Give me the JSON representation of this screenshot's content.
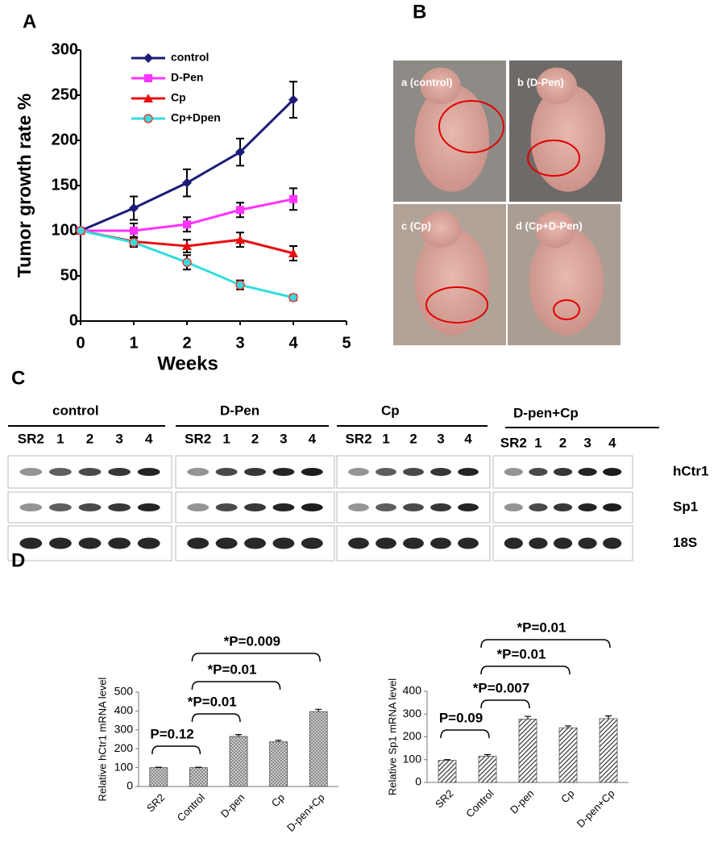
{
  "panel_labels": [
    "A",
    "B",
    "C",
    "D"
  ],
  "chart_data": [
    {
      "type": "line",
      "ylabel": "Tumor growth rate %",
      "xlabel": "Weeks",
      "x": [
        0,
        1,
        2,
        3,
        4
      ],
      "xlim": [
        0,
        5
      ],
      "xticks": [
        0,
        1,
        2,
        3,
        4,
        5
      ],
      "ylim": [
        0,
        300
      ],
      "yticks": [
        0,
        50,
        100,
        150,
        200,
        250,
        300
      ],
      "series": [
        {
          "name": "control",
          "color": "#1c1c78",
          "marker": "diamond",
          "values": [
            100,
            125,
            153,
            187,
            245
          ],
          "errors": [
            null,
            13,
            15,
            15,
            20
          ]
        },
        {
          "name": "D-Pen",
          "color": "#ff33ff",
          "marker": "square",
          "values": [
            100,
            100,
            107,
            123,
            135
          ],
          "errors": [
            null,
            8,
            8,
            8,
            12
          ]
        },
        {
          "name": "Cp",
          "color": "#e81010",
          "marker": "triangle",
          "values": [
            100,
            88,
            83,
            90,
            75
          ],
          "errors": [
            null,
            5,
            7,
            8,
            8
          ]
        },
        {
          "name": "Cp+Dpen",
          "color": "#33dddd",
          "marker": "circle",
          "values": [
            100,
            87,
            65,
            40,
            26
          ],
          "errors": [
            null,
            5,
            8,
            5,
            3
          ]
        }
      ]
    },
    {
      "type": "bar",
      "ylabel": "Relative hCtr1 mRNA level",
      "categories": [
        "SR2",
        "Control",
        "D-pen",
        "Cp",
        "D-pen+Cp"
      ],
      "values": [
        100,
        100,
        265,
        237,
        397
      ],
      "errors": [
        2,
        2,
        10,
        8,
        12
      ],
      "ylim": [
        0,
        500
      ],
      "yticks": [
        0,
        100,
        200,
        300,
        400,
        500
      ],
      "pattern": "dots",
      "annotations": [
        "P=0.12",
        "*P=0.01",
        "*P=0.01",
        "*P=0.009"
      ]
    },
    {
      "type": "bar",
      "ylabel": "Relative Sp1 mRNA level",
      "categories": [
        "SR2",
        "Control",
        "D-pen",
        "Cp",
        "D-pen+Cp"
      ],
      "values": [
        97,
        115,
        278,
        240,
        280
      ],
      "errors": [
        3,
        7,
        12,
        8,
        12
      ],
      "ylim": [
        0,
        400
      ],
      "yticks": [
        0,
        100,
        200,
        300,
        400
      ],
      "pattern": "hatch",
      "annotations": [
        "P=0.09",
        "*P=0.007",
        "*P=0.01",
        "*P=0.01"
      ]
    }
  ],
  "photos": [
    "a  (control)",
    "b  (D-Pen)",
    "c  (Cp)",
    "d  (Cp+D-Pen)"
  ],
  "blot": {
    "groups": [
      {
        "name": "control",
        "lanes": [
          "SR2",
          "1",
          "2",
          "3",
          "4"
        ]
      },
      {
        "name": "D-Pen",
        "lanes": [
          "SR2",
          "1",
          "2",
          "3",
          "4"
        ]
      },
      {
        "name": "Cp",
        "lanes": [
          "SR2",
          "1",
          "2",
          "3",
          "4"
        ]
      },
      {
        "name": "D-pen+Cp",
        "lanes": [
          "SR2",
          "1",
          "2",
          "3",
          "4"
        ]
      }
    ],
    "rows": [
      "hCtr1",
      "Sp1",
      "18S"
    ]
  }
}
